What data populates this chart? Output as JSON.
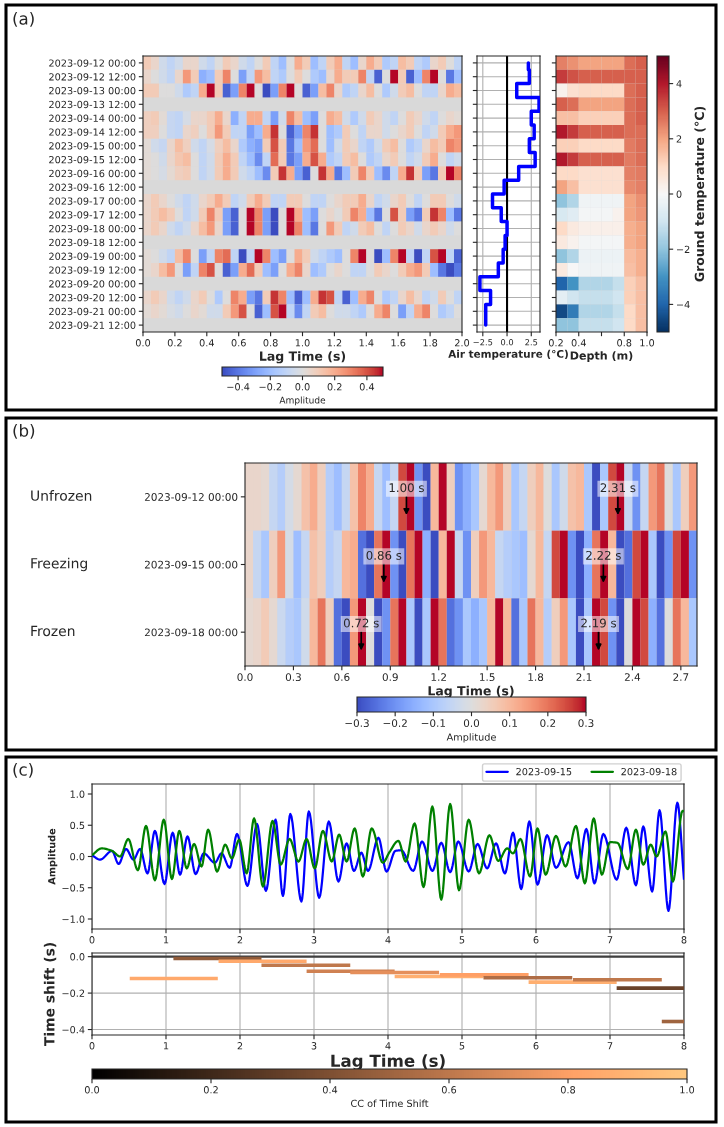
{
  "chart_data": [
    {
      "type": "heatmap",
      "title": "(a)",
      "xlabel": "Lag Time (s)",
      "clabel": "Amplitude",
      "x": [
        0.025,
        0.075,
        0.125,
        0.175,
        0.225,
        0.275,
        0.325,
        0.375,
        0.425,
        0.475,
        0.525,
        0.575,
        0.625,
        0.675,
        0.725,
        0.775,
        0.825,
        0.875,
        0.925,
        0.975,
        1.025,
        1.075,
        1.125,
        1.175,
        1.225,
        1.275,
        1.325,
        1.375,
        1.425,
        1.475,
        1.525,
        1.575,
        1.625,
        1.675,
        1.725,
        1.775,
        1.825,
        1.875,
        1.925,
        1.975
      ],
      "xlim": [
        0.0,
        2.0
      ],
      "xticks": [
        {
          "value": 0,
          "label": "0.0"
        },
        0.2,
        0.4,
        0.6,
        0.8,
        {
          "value": 1,
          "label": "1.0"
        },
        1.2,
        1.4,
        1.6,
        1.8,
        {
          "value": 2,
          "label": "2.0"
        }
      ],
      "y_categories": [
        "2023-09-12 00:00",
        "2023-09-12 12:00",
        "2023-09-13 00:00",
        "2023-09-13 12:00",
        "2023-09-14 00:00",
        "2023-09-14 12:00",
        "2023-09-15 00:00",
        "2023-09-15 12:00",
        "2023-09-16 00:00",
        "2023-09-16 12:00",
        "2023-09-17 00:00",
        "2023-09-17 12:00",
        "2023-09-18 00:00",
        "2023-09-18 12:00",
        "2023-09-19 00:00",
        "2023-09-19 12:00",
        "2023-09-20 00:00",
        "2023-09-20 12:00",
        "2023-09-21 00:00",
        "2023-09-21 12:00"
      ],
      "cells": [
        [
          0.1,
          0.05,
          -0.05,
          -0.1,
          -0.05,
          0.05,
          0.05,
          -0.05,
          -0.1,
          0,
          0.1,
          0.05,
          -0.05,
          -0.1,
          0,
          0.1,
          -0.1,
          -0.2,
          0,
          0.2,
          0.1,
          -0.2,
          -0.1,
          0.1,
          0.2,
          -0.1,
          -0.2,
          0.05,
          0.2,
          0.1,
          -0.15,
          -0.1,
          0.15,
          0.1,
          -0.1,
          -0.15,
          0.05,
          0.1,
          0,
          -0.1
        ],
        [
          0.05,
          0,
          -0.05,
          -0.1,
          0.05,
          0.25,
          0.1,
          -0.25,
          -0.2,
          0.1,
          0.3,
          0,
          -0.3,
          -0.1,
          0.25,
          0.15,
          -0.1,
          -0.15,
          0,
          0.1,
          0,
          -0.15,
          -0.2,
          0.05,
          0.2,
          0.1,
          0.1,
          0.3,
          -0.1,
          -0.45,
          0,
          0.5,
          0.1,
          -0.45,
          -0.2,
          0.3,
          0.5,
          0,
          -0.4,
          -0.2
        ],
        [
          0.1,
          0.1,
          0,
          0,
          -0.05,
          -0.15,
          -0.1,
          0.2,
          0.5,
          0.1,
          -0.45,
          -0.3,
          0.3,
          0.5,
          0,
          -0.5,
          -0.3,
          0.3,
          0.5,
          0,
          -0.45,
          -0.3,
          0.15,
          0.3,
          0.05,
          -0.15,
          -0.1,
          0.05,
          0.15,
          0,
          -0.15,
          -0.05,
          0.1,
          0.15,
          0,
          -0.1,
          -0.1,
          0.05,
          0.2,
          0.15
        ],
        [
          null,
          null,
          null,
          null,
          null,
          null,
          null,
          null,
          null,
          null,
          null,
          null,
          null,
          null,
          null,
          null,
          null,
          null,
          null,
          null,
          null,
          null,
          null,
          null,
          null,
          null,
          null,
          null,
          null,
          null,
          null,
          null,
          null,
          null,
          null,
          null,
          null,
          null,
          null,
          null
        ],
        [
          0.08,
          0.1,
          0.02,
          -0.08,
          -0.1,
          -0.03,
          0.05,
          0.05,
          0.1,
          0.2,
          0.05,
          -0.25,
          -0.1,
          0.2,
          0.2,
          -0.1,
          -0.3,
          -0.05,
          0.3,
          0.15,
          -0.2,
          -0.3,
          0,
          0.2,
          0.15,
          -0.05,
          -0.15,
          -0.05,
          0.1,
          0.05,
          -0.05,
          -0.1,
          0,
          0.1,
          0.05,
          -0.05,
          -0.1,
          0,
          0.05,
          0.02
        ],
        [
          0.08,
          0.08,
          0,
          -0.08,
          -0.1,
          0.05,
          0.08,
          0,
          0.1,
          0.25,
          0.1,
          -0.1,
          -0.1,
          -0.3,
          -0.2,
          0.2,
          0.45,
          0,
          -0.45,
          -0.3,
          0.3,
          0.45,
          0,
          -0.2,
          -0.15,
          0.1,
          0,
          -0.1,
          0.05,
          0.05,
          -0.05,
          0,
          0.05,
          0.1,
          0,
          -0.1,
          -0.05,
          0.1,
          0.2,
          0.25
        ],
        [
          0.02,
          -0.05,
          -0.08,
          0.05,
          0.15,
          0.08,
          -0.05,
          -0.1,
          -0.03,
          0.08,
          0.15,
          0.05,
          -0.15,
          -0.25,
          -0.3,
          0.1,
          0.4,
          0.1,
          -0.4,
          -0.2,
          0.25,
          0.35,
          0,
          -0.2,
          -0.05,
          0.1,
          0.05,
          -0.1,
          -0.15,
          -0.05,
          0.1,
          0.15,
          0,
          -0.15,
          -0.1,
          0.05,
          0.15,
          0.1,
          0.3,
          0.25
        ],
        [
          0.02,
          0,
          -0.05,
          0.05,
          0.12,
          0.15,
          0,
          -0.1,
          -0.05,
          0.1,
          0.2,
          0.1,
          -0.1,
          -0.2,
          -0.35,
          -0.1,
          0.35,
          0.1,
          -0.4,
          -0.3,
          0.2,
          0.4,
          0.2,
          -0.15,
          -0.1,
          0.1,
          0.15,
          0,
          -0.15,
          -0.1,
          0.05,
          0.1,
          0,
          -0.1,
          -0.05,
          0.1,
          0.2,
          0,
          -0.1,
          -0.05
        ],
        [
          0.02,
          0,
          -0.03,
          0.03,
          0.08,
          0.1,
          0,
          -0.1,
          -0.05,
          0.1,
          0.2,
          0.1,
          -0.05,
          -0.1,
          -0.2,
          -0.35,
          0.1,
          0.45,
          0.2,
          -0.3,
          -0.45,
          0,
          0.45,
          0.2,
          -0.4,
          -0.2,
          0.1,
          0.3,
          0.1,
          -0.2,
          -0.35,
          -0.1,
          0.2,
          0.45,
          0.1,
          -0.3,
          -0.4,
          0.1,
          0.5,
          0.3
        ],
        [
          null,
          null,
          null,
          null,
          null,
          null,
          null,
          null,
          null,
          null,
          null,
          null,
          null,
          null,
          null,
          null,
          null,
          null,
          null,
          null,
          null,
          null,
          null,
          null,
          null,
          null,
          null,
          null,
          null,
          null,
          null,
          null,
          null,
          null,
          null,
          null,
          null,
          null,
          null,
          null
        ],
        [
          0.05,
          0.1,
          0.05,
          0,
          -0.05,
          -0.1,
          -0.05,
          0.05,
          0.1,
          0.2,
          0.1,
          -0.1,
          -0.05,
          0.1,
          0.2,
          0.1,
          -0.1,
          -0.1,
          0.1,
          0.1,
          0,
          -0.1,
          -0.1,
          0,
          0.05,
          0.1,
          0.1,
          0.2,
          0.05,
          -0.1,
          -0.05,
          0.05,
          0.1,
          0,
          -0.1,
          0,
          0.1,
          0.1,
          0,
          -0.05
        ],
        [
          0.05,
          0.1,
          0.15,
          0.1,
          0,
          -0.1,
          -0.05,
          0.1,
          0.3,
          0.1,
          -0.3,
          -0.45,
          0,
          0.5,
          0.3,
          -0.3,
          -0.5,
          0,
          0.5,
          0.2,
          -0.2,
          -0.3,
          0,
          0.05,
          0,
          0.1,
          0.3,
          0.2,
          -0.2,
          -0.4,
          0,
          0.4,
          0.1,
          -0.3,
          -0.4,
          0.1,
          0.45,
          0.3,
          -0.2,
          -0.4
        ],
        [
          0.05,
          0.1,
          0.05,
          -0.05,
          -0.1,
          -0.05,
          0.05,
          0.15,
          0.25,
          0.05,
          -0.3,
          -0.45,
          0,
          0.5,
          0.3,
          -0.3,
          -0.5,
          0,
          0.5,
          0.3,
          -0.2,
          -0.4,
          0,
          0.25,
          0.1,
          -0.1,
          -0.05,
          0.1,
          0.15,
          0,
          -0.1,
          0,
          0.1,
          0.05,
          -0.05,
          0.05,
          0.1,
          0.05,
          -0.05,
          0
        ],
        [
          null,
          null,
          null,
          null,
          null,
          null,
          null,
          null,
          null,
          null,
          null,
          null,
          null,
          null,
          null,
          null,
          null,
          null,
          null,
          null,
          null,
          null,
          null,
          null,
          null,
          null,
          null,
          null,
          null,
          null,
          null,
          null,
          null,
          null,
          null,
          null,
          null,
          null,
          null,
          null
        ],
        [
          0.02,
          0,
          -0.05,
          -0.1,
          0.15,
          0.3,
          0,
          -0.3,
          -0.1,
          0.3,
          0.35,
          -0.1,
          -0.5,
          -0.1,
          0.5,
          0.3,
          -0.2,
          -0.3,
          0,
          0.2,
          0.1,
          -0.05,
          -0.1,
          -0.15,
          -0.2,
          0,
          0.3,
          0.5,
          0,
          -0.5,
          -0.2,
          0.3,
          0.5,
          -0.1,
          -0.5,
          -0.1,
          0.4,
          0.5,
          -0.1,
          -0.45
        ],
        [
          0.02,
          0.05,
          0.15,
          0.25,
          0,
          -0.3,
          -0.1,
          0.3,
          0.4,
          0,
          -0.45,
          -0.3,
          0.2,
          0.35,
          0.1,
          -0.2,
          -0.3,
          0,
          0.2,
          0.3,
          0.05,
          -0.2,
          -0.15,
          0,
          0.05,
          0,
          -0.1,
          -0.1,
          0,
          0.1,
          0.05,
          0,
          0.1,
          0.2,
          0.25,
          0.1,
          -0.2,
          -0.4,
          -0.5,
          -0.4
        ],
        [
          null,
          null,
          null,
          null,
          null,
          null,
          null,
          null,
          null,
          null,
          null,
          null,
          null,
          null,
          null,
          null,
          null,
          null,
          null,
          null,
          null,
          null,
          null,
          null,
          null,
          null,
          null,
          null,
          null,
          null,
          null,
          null,
          null,
          null,
          null,
          null,
          null,
          null,
          null,
          null
        ],
        [
          0.05,
          0.1,
          0.05,
          -0.05,
          -0.1,
          -0.05,
          0.05,
          0.1,
          0,
          -0.15,
          0,
          0.3,
          0.2,
          -0.3,
          -0.4,
          0.1,
          0.45,
          0.3,
          -0.2,
          -0.45,
          -0.2,
          0.2,
          0.45,
          0.4,
          -0.1,
          -0.45,
          -0.2,
          0.2,
          0.3,
          0,
          -0.15,
          -0.1,
          0.05,
          0.15,
          0.05,
          -0.1,
          -0.05,
          0.1,
          0,
          -0.1
        ],
        [
          0.02,
          0.05,
          0.02,
          -0.02,
          -0.05,
          0,
          0.05,
          0.02,
          -0.05,
          -0.05,
          0.1,
          0.25,
          0.4,
          0,
          -0.45,
          -0.2,
          0.4,
          0.5,
          -0.1,
          -0.35,
          -0.1,
          0.1,
          0.15,
          0,
          -0.05,
          -0.05,
          -0.1,
          -0.15,
          0,
          0.2,
          0.3,
          0,
          -0.3,
          -0.1,
          0.2,
          0.3,
          0,
          -0.15,
          -0.1,
          0
        ],
        [
          null,
          null,
          null,
          null,
          null,
          null,
          null,
          null,
          null,
          null,
          null,
          null,
          null,
          null,
          null,
          null,
          null,
          null,
          null,
          null,
          null,
          null,
          null,
          null,
          null,
          null,
          null,
          null,
          null,
          null,
          null,
          null,
          null,
          null,
          null,
          null,
          null,
          null,
          null,
          null
        ]
      ],
      "clim": [
        -0.5,
        0.5
      ],
      "cticks": [
        {
          "value": -0.4,
          "label": "−0.4"
        },
        {
          "value": -0.2,
          "label": "−0.2"
        },
        {
          "value": 0,
          "label": "0.0"
        },
        0.2,
        0.4
      ]
    },
    {
      "type": "step",
      "orientation": "horizontal",
      "xlabel": "Air temperature (°C)",
      "color": "#0000ff",
      "categories": [
        "2023-09-12 00:00",
        "2023-09-12 12:00",
        "2023-09-13 00:00",
        "2023-09-13 12:00",
        "2023-09-14 00:00",
        "2023-09-14 12:00",
        "2023-09-15 00:00",
        "2023-09-15 12:00",
        "2023-09-16 00:00",
        "2023-09-16 12:00",
        "2023-09-17 00:00",
        "2023-09-17 12:00",
        "2023-09-18 00:00",
        "2023-09-18 12:00",
        "2023-09-19 00:00",
        "2023-09-19 12:00",
        "2023-09-20 00:00",
        "2023-09-20 12:00",
        "2023-09-21 00:00",
        "2023-09-21 12:00"
      ],
      "values": [
        2.2,
        2.3,
        1.0,
        3.3,
        2.5,
        2.8,
        2.3,
        2.9,
        1.2,
        -0.3,
        -1.5,
        -0.6,
        0.0,
        -0.2,
        -0.4,
        -0.9,
        -2.8,
        -1.7,
        -2.2,
        -2.2
      ],
      "xlim": [
        -3.1,
        3.4
      ],
      "xticks": [
        {
          "value": -2.5,
          "label": "−2.5"
        },
        {
          "value": 0,
          "label": "0.0"
        },
        2.5
      ],
      "ref_lines": [
        {
          "axis": "x",
          "value": 0,
          "color": "#000000"
        }
      ],
      "grid": true,
      "tick_labels": "x"
    },
    {
      "type": "heatmap",
      "xlabel": "Depth (m)",
      "clabel": "Ground temperature (°C)",
      "x": [
        0.25,
        0.35,
        0.45,
        0.55,
        0.65,
        0.75,
        0.85,
        0.95
      ],
      "xlim": [
        0.2,
        1.0
      ],
      "xticks": [
        0.2,
        0.4,
        {
          "value": 0.6,
          "label": null
        },
        0.8,
        {
          "value": 1,
          "label": "1.0"
        }
      ],
      "y_categories": [
        "2023-09-12 00:00",
        "2023-09-12 12:00",
        "2023-09-13 00:00",
        "2023-09-13 12:00",
        "2023-09-14 00:00",
        "2023-09-14 12:00",
        "2023-09-15 00:00",
        "2023-09-15 12:00",
        "2023-09-16 00:00",
        "2023-09-16 12:00",
        "2023-09-17 00:00",
        "2023-09-17 12:00",
        "2023-09-18 00:00",
        "2023-09-18 12:00",
        "2023-09-19 00:00",
        "2023-09-19 12:00",
        "2023-09-20 00:00",
        "2023-09-20 12:00",
        "2023-09-21 00:00",
        "2023-09-21 12:00"
      ],
      "cells": [
        [
          2.5,
          2.3,
          2.0,
          2.0,
          2.0,
          2.0,
          2.8,
          3.0
        ],
        [
          3.5,
          3.2,
          3.0,
          3.0,
          3.0,
          3.0,
          3.0,
          3.0
        ],
        [
          0.2,
          0.8,
          1.0,
          1.0,
          1.0,
          1.0,
          2.8,
          3.0
        ],
        [
          3.0,
          2.8,
          2.0,
          2.0,
          2.0,
          2.0,
          2.8,
          3.0
        ],
        [
          1.5,
          1.5,
          1.2,
          1.2,
          1.2,
          1.2,
          2.8,
          3.0
        ],
        [
          4.0,
          3.5,
          3.0,
          3.0,
          3.0,
          3.0,
          2.8,
          2.8
        ],
        [
          1.2,
          1.2,
          1.0,
          1.0,
          1.0,
          1.0,
          2.6,
          2.8
        ],
        [
          4.0,
          3.5,
          3.0,
          3.0,
          3.0,
          3.0,
          2.6,
          2.8
        ],
        [
          1.0,
          1.0,
          0.8,
          0.8,
          0.8,
          0.8,
          2.5,
          2.6
        ],
        [
          2.0,
          1.5,
          0.8,
          0.8,
          0.8,
          0.8,
          2.4,
          2.5
        ],
        [
          -2.0,
          -1.5,
          -0.2,
          -0.2,
          -0.2,
          -0.2,
          2.0,
          2.3
        ],
        [
          -0.8,
          -0.6,
          -0.1,
          -0.1,
          -0.1,
          0.2,
          2.0,
          2.2
        ],
        [
          1.0,
          0.5,
          0.3,
          0.3,
          0.3,
          0.3,
          1.8,
          2.0
        ],
        [
          0.5,
          0.2,
          -0.1,
          -0.1,
          -0.1,
          -0.1,
          1.8,
          2.0
        ],
        [
          -2.0,
          -1.5,
          -0.3,
          -0.3,
          -0.3,
          -0.3,
          1.6,
          1.8
        ],
        [
          0.5,
          0.0,
          -0.2,
          -0.2,
          -0.2,
          -0.2,
          1.5,
          1.8
        ],
        [
          -4.0,
          -3.0,
          -1.5,
          -1.5,
          -1.5,
          -1.2,
          1.2,
          1.5
        ],
        [
          -0.5,
          -1.0,
          -1.2,
          -1.2,
          -1.2,
          -1.0,
          1.2,
          1.5
        ],
        [
          -4.5,
          -3.5,
          -1.5,
          -1.5,
          -1.5,
          -1.2,
          1.0,
          1.5
        ],
        [
          -2.0,
          -2.0,
          -1.2,
          -1.2,
          -1.2,
          -1.0,
          1.0,
          1.5
        ]
      ],
      "clim": [
        -5,
        5
      ],
      "cticks": [
        {
          "value": -4,
          "label": "−4"
        },
        {
          "value": -2,
          "label": "−2"
        },
        0,
        2,
        4
      ],
      "tick_labels": "x"
    },
    {
      "type": "heatmap",
      "title": "(b)",
      "xlabel": "Lag Time (s)",
      "clabel": "Amplitude",
      "x": [
        0.025,
        0.075,
        0.125,
        0.175,
        0.225,
        0.275,
        0.325,
        0.375,
        0.425,
        0.475,
        0.525,
        0.575,
        0.625,
        0.675,
        0.725,
        0.775,
        0.825,
        0.875,
        0.925,
        0.975,
        1.025,
        1.075,
        1.125,
        1.175,
        1.225,
        1.275,
        1.325,
        1.375,
        1.425,
        1.475,
        1.525,
        1.575,
        1.625,
        1.675,
        1.725,
        1.775,
        1.825,
        1.875,
        1.925,
        1.975,
        2.025,
        2.075,
        2.125,
        2.175,
        2.225,
        2.275,
        2.325,
        2.375,
        2.425,
        2.475,
        2.525,
        2.575,
        2.625,
        2.675,
        2.725,
        2.775
      ],
      "xlim": [
        0.0,
        2.8
      ],
      "xticks": [
        {
          "value": 0,
          "label": "0.0"
        },
        0.3,
        0.6,
        0.9,
        1.2,
        1.5,
        1.8,
        2.1,
        2.4,
        2.7
      ],
      "y_categories": [
        "2023-09-12 00:00",
        "2023-09-15 00:00",
        "2023-09-18 00:00"
      ],
      "y2_categories": [
        "Unfrozen",
        "Freezing",
        "Frozen"
      ],
      "cells": [
        [
          0.03,
          0.03,
          0.02,
          -0.05,
          -0.08,
          -0.02,
          0.02,
          0.08,
          0.12,
          0.05,
          -0.08,
          -0.12,
          -0.05,
          0.08,
          0.18,
          0.12,
          -0.05,
          -0.12,
          -0.05,
          0.25,
          0.3,
          -0.2,
          -0.3,
          0.1,
          0.3,
          0.05,
          -0.2,
          -0.15,
          -0.1,
          0.02,
          0.1,
          0.15,
          0.05,
          -0.1,
          -0.05,
          0.05,
          0.1,
          0,
          -0.1,
          -0.03,
          0.08,
          0.1,
          -0.1,
          -0.3,
          -0.1,
          0.25,
          0.3,
          -0.05,
          -0.2,
          -0.05,
          0.15,
          0.2,
          0,
          -0.1,
          0.05,
          0.15
        ],
        [
          0.03,
          -0.05,
          -0.1,
          0.05,
          0.15,
          -0.02,
          -0.12,
          -0.05,
          0.08,
          0.05,
          -0.08,
          -0.05,
          0.1,
          0.12,
          -0.25,
          -0.3,
          0.2,
          0.3,
          -0.2,
          -0.3,
          0.2,
          0.3,
          -0.15,
          -0.3,
          0.1,
          0.3,
          -0.05,
          -0.2,
          0.05,
          0.15,
          0.1,
          -0.05,
          -0.08,
          -0.1,
          -0.12,
          0.02,
          0.1,
          -0.05,
          0.25,
          0.3,
          -0.2,
          -0.3,
          -0.15,
          0.2,
          0.3,
          0.1,
          -0.3,
          -0.25,
          0.25,
          0.3,
          -0.1,
          -0.3,
          -0.2,
          0.25,
          0.3,
          -0.2
        ],
        [
          0.02,
          0.03,
          0.06,
          0.02,
          -0.04,
          -0.08,
          -0.1,
          -0.03,
          0.1,
          0.2,
          0.05,
          -0.25,
          -0.3,
          0.15,
          0.3,
          0,
          -0.3,
          -0.2,
          0.2,
          0.3,
          -0.1,
          -0.3,
          -0.1,
          0.3,
          0.2,
          -0.25,
          -0.2,
          -0.1,
          -0.15,
          -0.1,
          0.1,
          0.3,
          0.1,
          -0.25,
          -0.1,
          0.2,
          0.1,
          -0.08,
          0.05,
          0.15,
          -0.1,
          -0.3,
          -0.1,
          0.3,
          0.25,
          -0.2,
          -0.3,
          0,
          0.3,
          0.25,
          -0.15,
          -0.25,
          0,
          0.2,
          0.1,
          -0.1
        ]
      ],
      "annotations": [
        "1.00 s",
        "2.31 s",
        "0.86 s",
        "2.22 s",
        "0.72 s",
        "2.19 s"
      ],
      "clim": [
        -0.3,
        0.3
      ],
      "cticks": [
        {
          "value": -0.3,
          "label": "−0.3"
        },
        {
          "value": -0.2,
          "label": "−0.2"
        },
        {
          "value": -0.1,
          "label": "−0.1"
        },
        {
          "value": 0,
          "label": "0.0"
        },
        0.1,
        0.2,
        0.3
      ]
    },
    {
      "type": "line",
      "title": "(c)",
      "ylabel": "Amplitude",
      "xlim": [
        0,
        8
      ],
      "xticks": [
        0,
        1,
        2,
        3,
        4,
        5,
        6,
        7,
        8
      ],
      "ylim": [
        -1.16,
        1.16
      ],
      "yticks": [
        {
          "value": -1,
          "label": "−1.0"
        },
        {
          "value": -0.5,
          "label": "−0.5"
        },
        {
          "value": 0,
          "label": "0.0"
        },
        0.5,
        {
          "value": 1,
          "label": "1.0"
        }
      ],
      "grid": "x",
      "legend": "top right",
      "series": [
        {
          "name": "2023-09-15",
          "color": "#0000ff",
          "x": [
            0,
            0.11,
            0.27,
            0.36,
            0.46,
            0.56,
            0.65,
            0.75,
            0.85,
            0.98,
            1.09,
            1.19,
            1.29,
            1.4,
            1.51,
            1.66,
            1.75,
            1.86,
            1.96,
            2.1,
            2.23,
            2.35,
            2.48,
            2.58,
            2.68,
            2.83,
            2.93,
            3.07,
            3.2,
            3.33,
            3.44,
            3.54,
            3.64,
            3.73,
            3.87,
            3.98,
            4.1,
            4.18,
            4.34,
            4.46,
            4.6,
            4.72,
            4.84,
            4.95,
            5.09,
            5.21,
            5.34,
            5.46,
            5.58,
            5.69,
            5.8,
            5.91,
            6.02,
            6.15,
            6.27,
            6.44,
            6.56,
            6.68,
            6.79,
            6.91,
            7.09,
            7.22,
            7.35,
            7.45,
            7.57,
            7.67,
            7.79,
            7.91,
            8.0
          ],
          "values": [
            0.02,
            -0.05,
            0.09,
            -0.12,
            0.12,
            -0.05,
            0.12,
            -0.27,
            0.41,
            -0.44,
            0.38,
            -0.29,
            0.32,
            -0.28,
            0.05,
            -0.1,
            0.05,
            -0.18,
            0.36,
            -0.47,
            0.52,
            -0.55,
            0.59,
            -0.63,
            0.68,
            -0.72,
            0.72,
            -0.66,
            0.56,
            -0.4,
            0.21,
            -0.23,
            0.06,
            -0.23,
            0.3,
            -0.24,
            0.09,
            0.1,
            -0.23,
            0.24,
            -0.23,
            0.22,
            -0.25,
            0.24,
            -0.24,
            0.2,
            -0.19,
            0.21,
            -0.27,
            0.38,
            -0.52,
            0.56,
            -0.45,
            0.34,
            -0.18,
            0.23,
            -0.35,
            0.44,
            -0.43,
            0.36,
            -0.37,
            0.46,
            -0.46,
            0.48,
            -0.56,
            0.74,
            -0.87,
            0.86,
            -0.37
          ]
        },
        {
          "name": "2023-09-18",
          "color": "#008000",
          "x": [
            0,
            0.13,
            0.27,
            0.38,
            0.49,
            0.62,
            0.73,
            0.85,
            0.97,
            1.08,
            1.18,
            1.28,
            1.38,
            1.48,
            1.57,
            1.69,
            1.8,
            1.89,
            1.99,
            2.09,
            2.19,
            2.31,
            2.44,
            2.55,
            2.67,
            2.79,
            2.9,
            3.01,
            3.12,
            3.24,
            3.34,
            3.44,
            3.55,
            3.66,
            3.78,
            3.93,
            4.02,
            4.14,
            4.24,
            4.36,
            4.48,
            4.6,
            4.72,
            4.84,
            4.96,
            5.09,
            5.23,
            5.37,
            5.49,
            5.61,
            5.69,
            5.79,
            5.92,
            6.02,
            6.13,
            6.27,
            6.4,
            6.54,
            6.66,
            6.78,
            6.89,
            7.0,
            7.1,
            7.24,
            7.35,
            7.45,
            7.55,
            7.63,
            7.75,
            7.85,
            7.98,
            8.0
          ],
          "values": [
            0.02,
            0.13,
            0.09,
            0.0,
            0.28,
            -0.22,
            0.49,
            -0.38,
            0.59,
            -0.36,
            0.41,
            -0.19,
            0.2,
            -0.16,
            0.43,
            -0.24,
            0.19,
            -0.03,
            0.27,
            -0.27,
            0.61,
            -0.48,
            0.57,
            -0.13,
            0.28,
            -0.08,
            0.28,
            -0.19,
            0.41,
            -0.08,
            0.35,
            -0.08,
            0.45,
            -0.32,
            0.45,
            -0.1,
            0.07,
            0.25,
            -0.08,
            0.53,
            -0.49,
            0.8,
            -0.69,
            0.84,
            -0.54,
            0.59,
            -0.27,
            0.34,
            -0.07,
            0.13,
            0.05,
            0.28,
            -0.32,
            0.45,
            -0.29,
            0.33,
            -0.16,
            0.49,
            -0.43,
            0.61,
            -0.29,
            0.23,
            0.22,
            -0.2,
            0.43,
            -0.13,
            0.19,
            0.0,
            0.4,
            -0.4,
            0.73,
            0.72
          ]
        }
      ]
    },
    {
      "type": "line",
      "xlabel": "Lag Time (s)",
      "ylabel": "Time shift (s)",
      "clabel": "CC of Time Shift",
      "xlim": [
        0,
        8
      ],
      "xticks": [
        0,
        1,
        2,
        3,
        4,
        5,
        6,
        7,
        8
      ],
      "ylim": [
        -0.43,
        0.02
      ],
      "yticks": [
        {
          "value": 0,
          "label": "0.0"
        },
        {
          "value": -0.2,
          "label": "−0.2"
        },
        {
          "value": -0.4,
          "label": "−0.4"
        }
      ],
      "grid": true,
      "ref_lines": [
        {
          "axis": "y",
          "value": 0,
          "color": "#404040"
        }
      ],
      "clim": [
        0.0,
        1.0
      ],
      "cticks": [
        {
          "value": 0,
          "label": "0.0"
        },
        0.2,
        0.4,
        0.6,
        0.8,
        {
          "value": 1,
          "label": "1.0"
        }
      ],
      "series": [
        {
          "x": [
            0.51,
            1.7
          ],
          "values": [
            -0.12,
            -0.12
          ],
          "color": "#ffa96c"
        },
        {
          "x": [
            1.1,
            2.29
          ],
          "values": [
            -0.01,
            -0.01
          ],
          "color": "#8f5a39"
        },
        {
          "x": [
            1.71,
            2.9
          ],
          "values": [
            -0.025,
            -0.025
          ],
          "color": "#ffa96c"
        },
        {
          "x": [
            2.29,
            3.49
          ],
          "values": [
            -0.047,
            -0.047
          ],
          "color": "#bf784c"
        },
        {
          "x": [
            2.9,
            4.09
          ],
          "values": [
            -0.08,
            -0.08
          ],
          "color": "#cf8152"
        },
        {
          "x": [
            3.49,
            4.69
          ],
          "values": [
            -0.087,
            -0.087
          ],
          "color": "#e58f5b"
        },
        {
          "x": [
            4.09,
            5.29
          ],
          "values": [
            -0.109,
            -0.109
          ],
          "color": "#ffaf70"
        },
        {
          "x": [
            4.7,
            5.9
          ],
          "values": [
            -0.1,
            -0.1
          ],
          "color": "#ff9f65"
        },
        {
          "x": [
            5.29,
            6.49
          ],
          "values": [
            -0.116,
            -0.116
          ],
          "color": "#af6d46"
        },
        {
          "x": [
            5.9,
            7.09
          ],
          "values": [
            -0.14,
            -0.14
          ],
          "color": "#ffaf70"
        },
        {
          "x": [
            6.5,
            7.7
          ],
          "values": [
            -0.127,
            -0.127
          ],
          "color": "#bf784c"
        },
        {
          "x": [
            7.09,
            8.0
          ],
          "values": [
            -0.173,
            -0.173
          ],
          "color": "#69422a"
        },
        {
          "x": [
            7.7,
            8.0
          ],
          "values": [
            -0.356,
            -0.356
          ],
          "color": "#9f643f"
        }
      ]
    }
  ]
}
